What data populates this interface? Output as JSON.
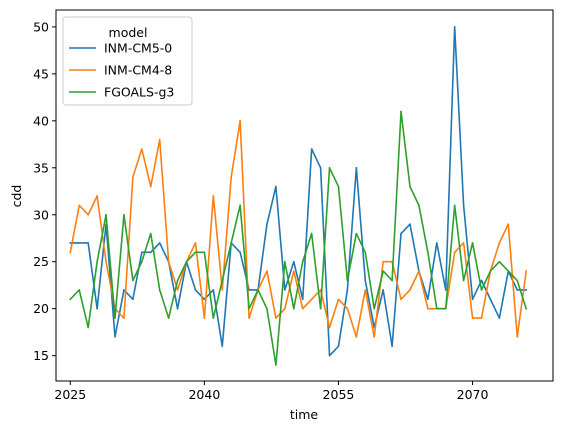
{
  "chart_data": {
    "type": "line",
    "xlabel": "time",
    "ylabel": "cdd",
    "xlim": [
      2023.4,
      2079.0
    ],
    "ylim": [
      12.3,
      51.8
    ],
    "x_ticks": [
      2025,
      2040,
      2055,
      2070
    ],
    "y_ticks": [
      15,
      20,
      25,
      30,
      35,
      40,
      45,
      50
    ],
    "grid": false,
    "legend": {
      "title": "model",
      "placement": "top-left"
    },
    "x": [
      2025,
      2026,
      2027,
      2028,
      2029,
      2030,
      2031,
      2032,
      2033,
      2034,
      2035,
      2036,
      2037,
      2038,
      2039,
      2040,
      2041,
      2042,
      2043,
      2044,
      2045,
      2046,
      2047,
      2048,
      2049,
      2050,
      2051,
      2052,
      2053,
      2054,
      2055,
      2056,
      2057,
      2058,
      2059,
      2060,
      2061,
      2062,
      2063,
      2064,
      2065,
      2066,
      2067,
      2068,
      2069,
      2070,
      2071,
      2072,
      2073,
      2074,
      2075
    ],
    "series": [
      {
        "name": "INM-CM5-0",
        "color": "#1f77b4",
        "values": [
          27,
          27,
          27,
          20,
          29,
          17,
          22,
          21,
          26,
          26,
          27,
          25,
          20,
          25,
          22,
          21,
          22,
          16,
          27,
          26,
          22,
          22,
          29,
          33,
          22,
          25,
          21,
          37,
          35,
          15,
          16,
          22,
          35,
          23,
          18,
          22,
          16,
          28,
          29,
          24,
          21,
          27,
          22,
          50,
          31,
          21,
          23,
          21,
          19,
          24,
          22
        ]
      },
      {
        "name": "INM-CM4-8",
        "color": "#ff7f0e",
        "values": [
          26,
          31,
          30,
          32,
          25,
          20,
          19,
          34,
          37,
          33,
          38,
          25,
          22,
          25,
          27,
          19,
          32,
          22,
          34,
          40,
          19,
          22,
          24,
          19,
          20,
          24,
          20,
          21,
          22,
          18,
          21,
          20,
          17,
          22,
          17,
          25,
          25,
          21,
          22,
          24,
          20,
          20,
          20,
          26,
          27,
          19,
          19,
          24,
          27,
          29,
          17
        ]
      },
      {
        "name": "FGOALS-g3",
        "color": "#2ca02c",
        "values": [
          21,
          22,
          18,
          25,
          30,
          19,
          30,
          23,
          25,
          28,
          22,
          19,
          23,
          25,
          26,
          26,
          19,
          23,
          27,
          31,
          20,
          22,
          20,
          14,
          25,
          20,
          25,
          28,
          20,
          35,
          33,
          23,
          28,
          26,
          20,
          24,
          23,
          41,
          33,
          31,
          26,
          20,
          20,
          31,
          23,
          27,
          22,
          24,
          25,
          24,
          23
        ]
      }
    ]
  },
  "tail": {
    "x": [
      2076
    ],
    "inm_cm5_0": [
      22
    ],
    "inm_cm4_8": [
      24
    ],
    "fgoals_g3": [
      20
    ]
  }
}
